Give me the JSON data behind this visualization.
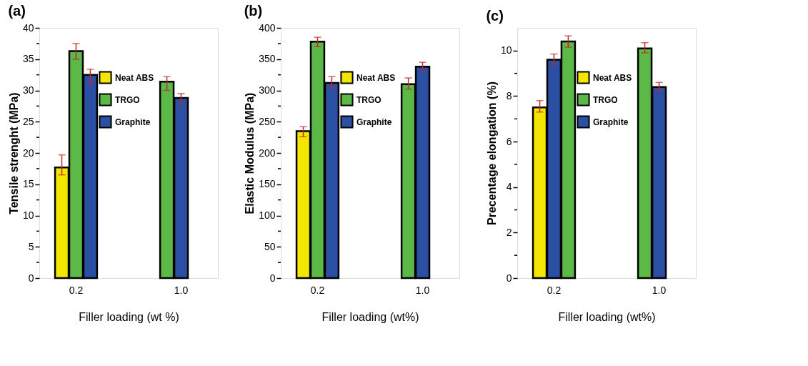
{
  "chart_data": [
    {
      "type": "bar",
      "title": "(a)",
      "xlabel": "Filler loading (wt %)",
      "ylabel": "Tensile strenght (MPa)",
      "categories": [
        "0.2",
        "1.0"
      ],
      "ylim": [
        0,
        40
      ],
      "yticks": [
        0,
        {
          "value": 2.5,
          "label": null
        },
        5,
        {
          "value": 7.5,
          "label": null
        },
        10,
        {
          "value": 12.5,
          "label": null
        },
        15,
        {
          "value": 17.5,
          "label": null
        },
        20,
        {
          "value": 22.5,
          "label": null
        },
        25,
        {
          "value": 27.5,
          "label": null
        },
        30,
        {
          "value": 32.5,
          "label": null
        },
        35,
        {
          "value": 37.5,
          "label": null
        },
        40
      ],
      "legend": "top",
      "grid": false,
      "series": [
        {
          "name": "Neat ABS",
          "color": "#f3e600",
          "values": [
            17.7,
            null
          ],
          "errors": [
            [
              16.5,
              19.7
            ],
            null
          ]
        },
        {
          "name": "TRGO",
          "color": "#5cb847",
          "values": [
            36.3,
            31.4
          ],
          "errors": [
            [
              35.0,
              37.5
            ],
            [
              30.0,
              32.2
            ]
          ]
        },
        {
          "name": "Graphite",
          "color": "#2a4fa3",
          "values": [
            32.5,
            28.8
          ],
          "errors": [
            [
              31.2,
              33.4
            ],
            [
              27.8,
              29.5
            ]
          ]
        }
      ]
    },
    {
      "type": "bar",
      "title": "(b)",
      "xlabel": "Filler loading (wt%)",
      "ylabel": "Elastic Modulus (MPa)",
      "categories": [
        "0.2",
        "1.0"
      ],
      "ylim": [
        0,
        400
      ],
      "yticks": [
        0,
        {
          "value": 25,
          "label": null
        },
        50,
        {
          "value": 75,
          "label": null
        },
        100,
        {
          "value": 125,
          "label": null
        },
        150,
        {
          "value": 175,
          "label": null
        },
        200,
        {
          "value": 225,
          "label": null
        },
        250,
        {
          "value": 275,
          "label": null
        },
        300,
        {
          "value": 325,
          "label": null
        },
        350,
        {
          "value": 375,
          "label": null
        },
        400
      ],
      "legend": "top",
      "grid": false,
      "series": [
        {
          "name": "Neat ABS",
          "color": "#f3e600",
          "values": [
            235,
            null
          ],
          "errors": [
            [
              226,
              242
            ],
            null
          ]
        },
        {
          "name": "TRGO",
          "color": "#5cb847",
          "values": [
            378,
            310
          ],
          "errors": [
            [
              370,
              385
            ],
            [
              302,
              320
            ]
          ]
        },
        {
          "name": "Graphite",
          "color": "#2a4fa3",
          "values": [
            312,
            338
          ],
          "errors": [
            [
              305,
              322
            ],
            [
              331,
              345
            ]
          ]
        }
      ]
    },
    {
      "type": "bar",
      "title": "(c)",
      "xlabel": "Filler loading (wt%)",
      "ylabel": "Precentage elongation (%)",
      "categories": [
        "0.2",
        "1.0"
      ],
      "ylim": [
        0,
        11
      ],
      "yticks": [
        0,
        {
          "value": 1,
          "label": null
        },
        2,
        {
          "value": 3,
          "label": null
        },
        4,
        {
          "value": 5,
          "label": null
        },
        6,
        {
          "value": 7,
          "label": null
        },
        8,
        {
          "value": 9,
          "label": null
        },
        10
      ],
      "legend": "top",
      "grid": false,
      "series": [
        {
          "name": "Neat ABS",
          "color": "#f3e600",
          "values": [
            7.5,
            null
          ],
          "errors": [
            [
              7.3,
              7.8
            ],
            null
          ]
        },
        {
          "color": "#2a4fa3",
          "values": [
            9.6,
            null
          ],
          "errors": [
            [
              9.4,
              9.85
            ],
            null
          ]
        },
        {
          "name": "TRGO",
          "color": "#5cb847",
          "values": [
            10.4,
            10.1
          ],
          "errors": [
            [
              10.15,
              10.65
            ],
            [
              9.9,
              10.35
            ]
          ]
        },
        {
          "name": "Graphite",
          "color": "#2a4fa3",
          "values": [
            null,
            8.4
          ],
          "errors": [
            null,
            [
              8.2,
              8.6
            ]
          ]
        }
      ]
    }
  ]
}
